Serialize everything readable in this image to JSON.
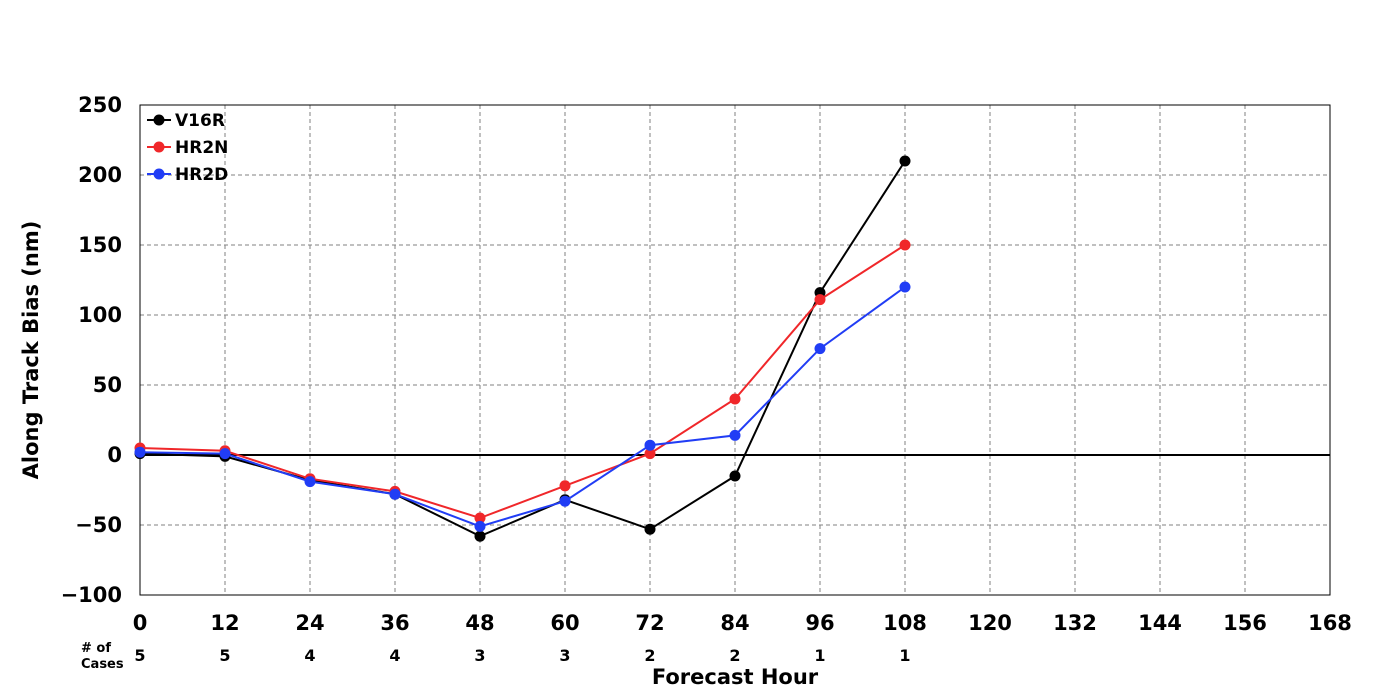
{
  "chart_data": {
    "type": "line",
    "title": "",
    "xlabel": "Forecast Hour",
    "ylabel": "Along Track Bias (nm)",
    "xlim": [
      0,
      168
    ],
    "ylim": [
      -100,
      250
    ],
    "x_ticks": [
      0,
      12,
      24,
      36,
      48,
      60,
      72,
      84,
      96,
      108,
      120,
      132,
      144,
      156,
      168
    ],
    "y_ticks": [
      -100,
      -50,
      0,
      50,
      100,
      150,
      200,
      250
    ],
    "grid": true,
    "legend_position": "top-left",
    "x": [
      0,
      12,
      24,
      36,
      48,
      60,
      72,
      84,
      96,
      108
    ],
    "series": [
      {
        "name": "V16R",
        "color": "#000000",
        "values": [
          1,
          -1,
          -18,
          -28,
          -58,
          -32,
          -53,
          -15,
          116,
          210
        ]
      },
      {
        "name": "HR2N",
        "color": "#f0272a",
        "values": [
          5,
          3,
          -17,
          -26,
          -45,
          -22,
          1,
          40,
          111,
          150
        ]
      },
      {
        "name": "HR2D",
        "color": "#213df5",
        "values": [
          2,
          1,
          -19,
          -28,
          -51,
          -33,
          7,
          14,
          76,
          120
        ]
      }
    ],
    "cases": {
      "label_line1": "# of",
      "label_line2": "Cases",
      "values": [
        5,
        5,
        4,
        4,
        3,
        3,
        2,
        2,
        1,
        1
      ]
    }
  }
}
